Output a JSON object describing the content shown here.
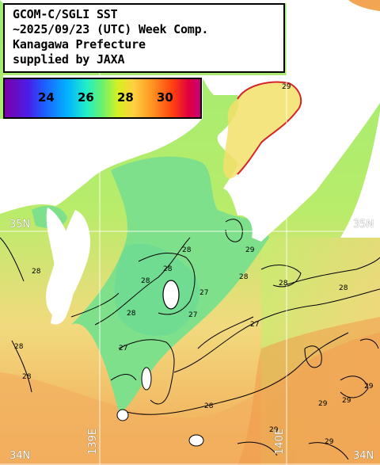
{
  "title": {
    "line1": "GCOM-C/SGLI SST",
    "line2": "~2025/09/23 (UTC) Week Comp.",
    "line3": "Kanagawa Prefecture",
    "line4": "supplied by JAXA"
  },
  "scale": {
    "ticks": [
      "24",
      "26",
      "28",
      "30"
    ]
  },
  "grid_labels": {
    "lat_upper_left": "35N",
    "lat_upper_right": "35N",
    "lat_lower_left": "34N",
    "lat_lower_right": "34N",
    "lon_left": "139E",
    "lon_right": "140E"
  },
  "contour_labels": [
    "28",
    "28",
    "28",
    "27",
    "28",
    "28",
    "28",
    "27",
    "27",
    "28",
    "27",
    "28",
    "28",
    "28",
    "28",
    "29",
    "29",
    "29",
    "29",
    "29",
    "29",
    "29"
  ],
  "colors": {
    "land": "#ffffff",
    "cool_water": "#7ee58a",
    "mid_water": "#c6ee6e",
    "warm_water": "#f6d77a",
    "hot_water": "#f29a4a",
    "contour": "#000000"
  }
}
